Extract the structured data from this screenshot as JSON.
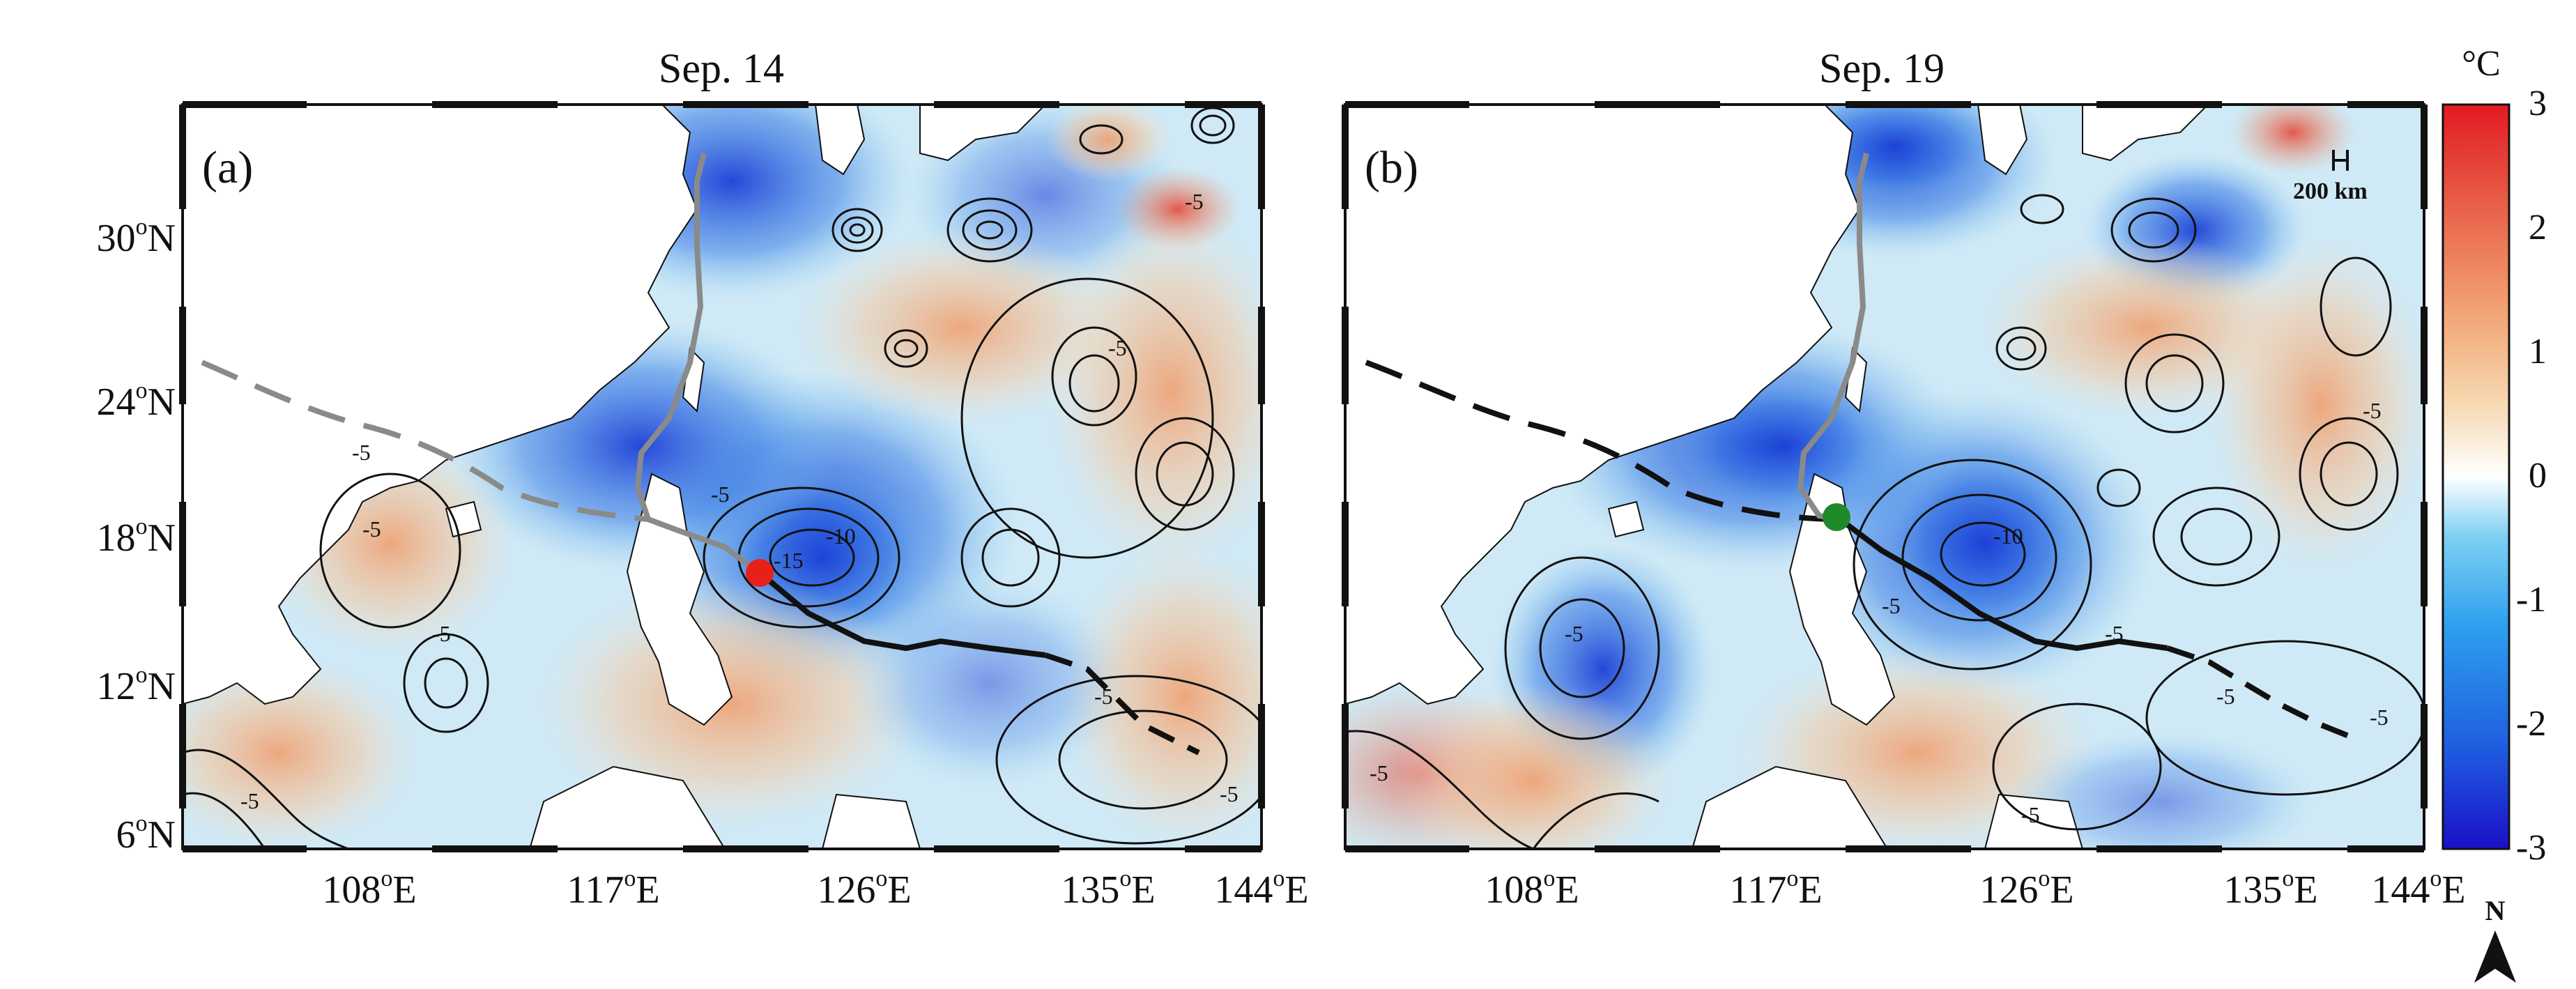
{
  "figure": {
    "panels": [
      {
        "id": "a",
        "title": "Sep. 14",
        "label": "(a)",
        "marker": "red-dot",
        "track_label": "typhoon track with position marker"
      },
      {
        "id": "b",
        "title": "Sep. 19",
        "label": "(b)",
        "marker": "green-dot",
        "scale_bar": "200 km",
        "track_label": "typhoon track with position marker"
      }
    ],
    "y_ticks": [
      {
        "deg": "30",
        "unit": "o",
        "hem": "N"
      },
      {
        "deg": "24",
        "unit": "o",
        "hem": "N"
      },
      {
        "deg": "18",
        "unit": "o",
        "hem": "N"
      },
      {
        "deg": "12",
        "unit": "o",
        "hem": "N"
      },
      {
        "deg": "6",
        "unit": "o",
        "hem": "N"
      }
    ],
    "x_ticks": [
      {
        "deg": "108",
        "unit": "o",
        "hem": "E"
      },
      {
        "deg": "117",
        "unit": "o",
        "hem": "E"
      },
      {
        "deg": "126",
        "unit": "o",
        "hem": "E"
      },
      {
        "deg": "135",
        "unit": "o",
        "hem": "E"
      },
      {
        "deg": "144",
        "unit": "o",
        "hem": "E"
      }
    ],
    "contour_labels_a": [
      "-5",
      "-5",
      "-5",
      "-5",
      "-5",
      "-5",
      "-10",
      "-15",
      "-5",
      "-5",
      "-5"
    ],
    "contour_labels_b": [
      "-5",
      "-5",
      "-10",
      "-5",
      "-5",
      "-5",
      "-5",
      "-5",
      "-5"
    ],
    "colorbar": {
      "unit": "°C",
      "ticks": [
        "3",
        "2",
        "1",
        "0",
        "-1",
        "-2",
        "-3"
      ],
      "range": [
        -3,
        3
      ],
      "colors": [
        "#1a10c8",
        "#1f5fe0",
        "#2ea0ee",
        "#7fd0f2",
        "#ffffff",
        "#f7d8b0",
        "#f2a474",
        "#e8624a",
        "#e21a22"
      ]
    },
    "north_arrow": "N",
    "colors": {
      "track_gray": "#8a8a8a",
      "track_black": "#000000",
      "marker_red": "#e8201a",
      "marker_green": "#1f8a2a",
      "ocean_cool": "#5aa8e8",
      "ocean_warm": "#f3c49a"
    }
  }
}
